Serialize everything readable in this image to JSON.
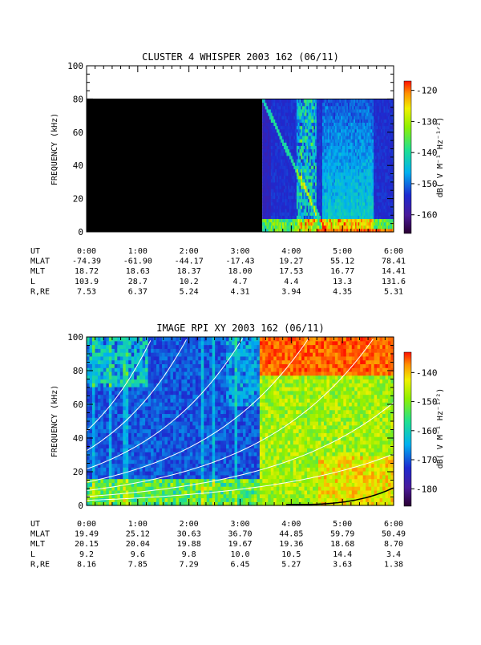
{
  "chart_data": [
    {
      "type": "heatmap",
      "title": "CLUSTER 4 WHISPER 2003 162 (06/11)",
      "ylabel": "FREQUENCY (kHz)",
      "ylim": [
        0,
        100
      ],
      "yticks": [
        "0",
        "20",
        "40",
        "60",
        "80",
        "100"
      ],
      "colorbar": {
        "label": "dB( V M⁻¹ Hz⁻¹ᐟ²)",
        "range": [
          -166,
          -117
        ],
        "ticks": [
          "-120",
          "-130",
          "-140",
          "-150",
          "-160"
        ],
        "colormap": "rainbow"
      },
      "data_window": {
        "t_start": "3:26",
        "t_end": "6:00",
        "f_max_khz": 80,
        "no_data_before": "3:26"
      },
      "orbit": {
        "labels": [
          "UT",
          "MLAT",
          "MLT",
          "L",
          "R,RE"
        ],
        "times": [
          "0:00",
          "1:00",
          "2:00",
          "3:00",
          "4:00",
          "5:00",
          "6:00"
        ],
        "MLAT": [
          "-74.39",
          "-61.90",
          "-44.17",
          "-17.43",
          "19.27",
          "55.12",
          "78.41"
        ],
        "MLT": [
          "18.72",
          "18.63",
          "18.37",
          "18.00",
          "17.53",
          "16.77",
          "14.41"
        ],
        "L": [
          "103.9",
          "28.7",
          "10.2",
          "4.7",
          "4.4",
          "13.3",
          "131.6"
        ],
        "R,RE": [
          "7.53",
          "6.37",
          "5.24",
          "4.31",
          "3.94",
          "4.35",
          "5.31"
        ]
      }
    },
    {
      "type": "heatmap",
      "title": "IMAGE RPI XY 2003 162 (06/11)",
      "ylabel": "FREQUENCY (kHz)",
      "ylim": [
        0,
        100
      ],
      "yticks": [
        "0",
        "20",
        "40",
        "60",
        "80",
        "100"
      ],
      "colorbar": {
        "label": "dB( V M⁻¹ Hz⁻¹ᐟ²)",
        "range": [
          -186,
          -133
        ],
        "ticks": [
          "-140",
          "-150",
          "-160",
          "-170",
          "-180"
        ],
        "colormap": "rainbow"
      },
      "overlay_curves": "white plasma-frequency curves",
      "orbit": {
        "labels": [
          "UT",
          "MLAT",
          "MLT",
          "L",
          "R,RE"
        ],
        "times": [
          "0:00",
          "1:00",
          "2:00",
          "3:00",
          "4:00",
          "5:00",
          "6:00"
        ],
        "MLAT": [
          "19.49",
          "25.12",
          "30.63",
          "36.70",
          "44.85",
          "59.79",
          "50.49"
        ],
        "MLT": [
          "20.15",
          "20.04",
          "19.88",
          "19.67",
          "19.36",
          "18.68",
          "8.70"
        ],
        "L": [
          "9.2",
          "9.6",
          "9.8",
          "10.0",
          "10.5",
          "14.4",
          "3.4"
        ],
        "R,RE": [
          "8.16",
          "7.85",
          "7.29",
          "6.45",
          "5.27",
          "3.63",
          "1.38"
        ]
      }
    }
  ]
}
